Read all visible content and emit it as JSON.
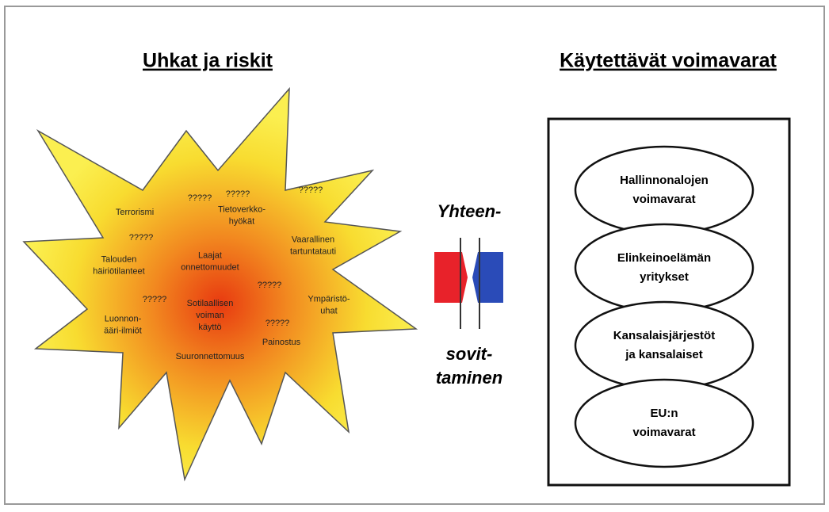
{
  "header": {
    "left": "Uhkat ja riskit",
    "right": "Käytettävät voimavarat"
  },
  "threats": [
    [
      "Terrorismi"
    ],
    [
      "Tietoverkko-",
      "hyökät"
    ],
    [
      "Vaarallinen",
      "tartuntatauti"
    ],
    [
      "Talouden",
      "häiriötilanteet"
    ],
    [
      "Laajat",
      "onnettomuudet"
    ],
    [
      "Ympäristö-",
      "uhat"
    ],
    [
      "Sotilaallisen",
      "voiman",
      "käyttö"
    ],
    [
      "Luonnon-",
      "ääri-ilmiöt"
    ],
    [
      "Painostus"
    ],
    [
      "Suuronnettomuus"
    ]
  ],
  "unknowns": [
    "?????",
    "?????",
    "?????",
    "?????",
    "?????",
    "?????",
    "?????"
  ],
  "coordination": {
    "top": "Yhteen-",
    "bottom": [
      "sovit-",
      "taminen"
    ]
  },
  "resources": [
    [
      "Hallinnonalojen",
      "voimavarat"
    ],
    [
      "Elinkeinoelämän",
      "yritykset"
    ],
    [
      "Kansalaisjärjestöt",
      "ja kansalaiset"
    ],
    [
      "EU:n",
      "voimavarat"
    ]
  ]
}
